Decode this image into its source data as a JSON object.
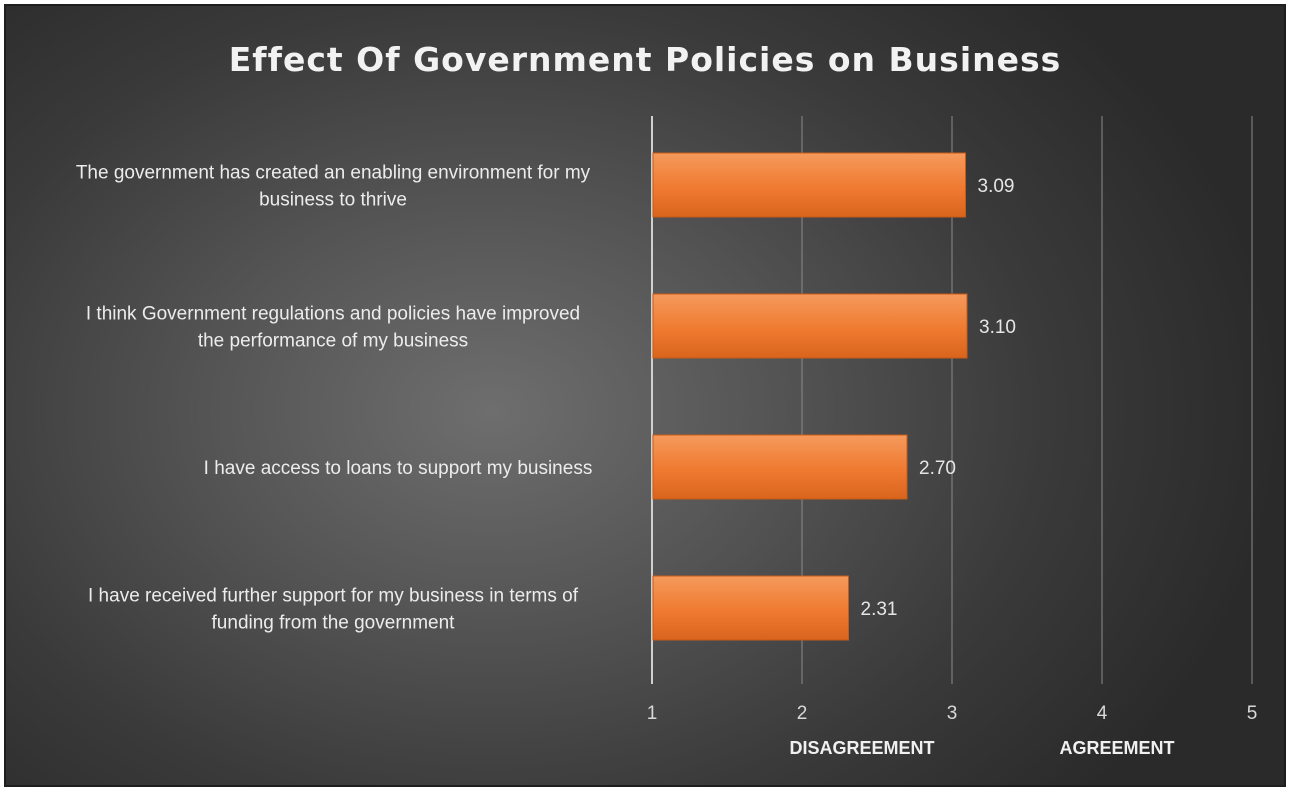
{
  "chart_data": {
    "type": "bar",
    "orientation": "horizontal",
    "title": "Effect Of Government Policies on Business",
    "categories": [
      [
        "The government has created an enabling environment for my",
        "business to thrive"
      ],
      [
        "I think Government regulations and policies have improved",
        "the performance of my   business"
      ],
      [
        "I have access to loans to support my business"
      ],
      [
        "I have received further support for my business in terms of",
        "funding from the government"
      ]
    ],
    "values": [
      3.09,
      3.1,
      2.7,
      2.31
    ],
    "value_labels": [
      "3.09",
      "3.10",
      "2.70",
      "2.31"
    ],
    "xlim": [
      1,
      5
    ],
    "x_ticks": [
      "1",
      "2",
      "3",
      "4",
      "5"
    ],
    "zone_labels": [
      "DISAGREEMENT",
      "AGREEMENT"
    ],
    "grid": true,
    "bar_color": "#f07a2e"
  }
}
